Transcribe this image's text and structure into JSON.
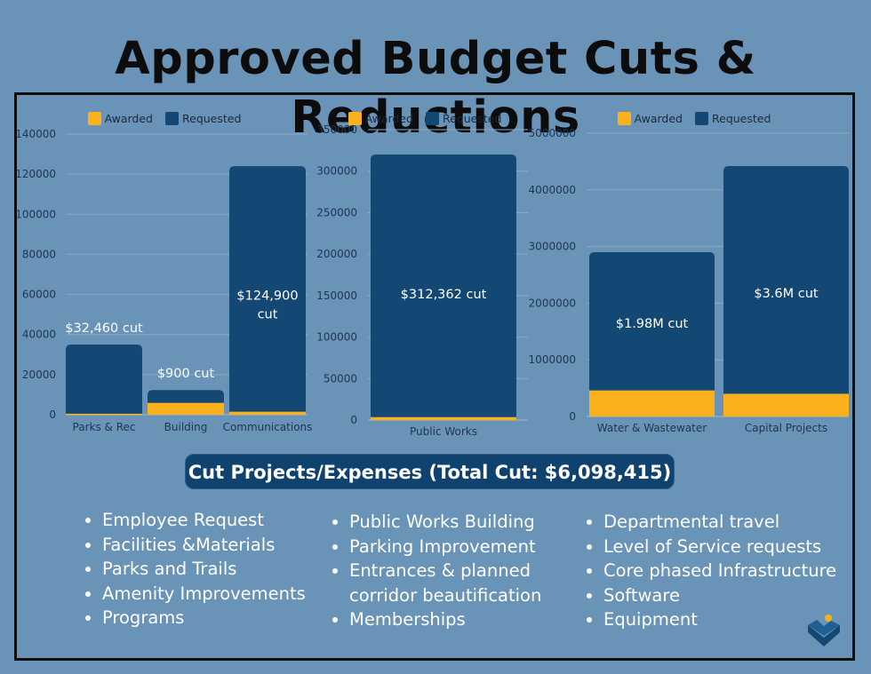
{
  "title": "Approved Budget Cuts & Reductions",
  "colors": {
    "awarded": "#fbb11b",
    "requested": "#134874",
    "axis_text": "#1f3550"
  },
  "chart_data": [
    {
      "type": "bar",
      "stacked": "overlay",
      "categories": [
        "Parks & Rec",
        "Building",
        "Communications"
      ],
      "series": [
        {
          "name": "Awarded",
          "values": [
            500,
            5900,
            1500
          ]
        },
        {
          "name": "Requested",
          "values": [
            35000,
            12300,
            124000
          ]
        }
      ],
      "annotations": [
        "$32,460 cut",
        "$900 cut",
        "$124,900 cut"
      ],
      "annotation_inside": [
        false,
        false,
        true
      ],
      "yticks": [
        0,
        20000,
        40000,
        60000,
        80000,
        100000,
        120000,
        140000
      ],
      "ylim": [
        0,
        140000
      ],
      "legend": "top",
      "grid": true
    },
    {
      "type": "bar",
      "stacked": "overlay",
      "categories": [
        "Public Works"
      ],
      "series": [
        {
          "name": "Awarded",
          "values": [
            3500
          ]
        },
        {
          "name": "Requested",
          "values": [
            320000
          ]
        }
      ],
      "annotations": [
        "$312,362 cut"
      ],
      "annotation_inside": [
        true
      ],
      "yticks": [
        0,
        50000,
        100000,
        150000,
        200000,
        250000,
        300000,
        350000
      ],
      "ylim": [
        0,
        350000
      ],
      "legend": "top",
      "grid": true
    },
    {
      "type": "bar",
      "stacked": "overlay",
      "categories": [
        "Water & Wastewater",
        "Capital Projects"
      ],
      "series": [
        {
          "name": "Awarded",
          "values": [
            460000,
            400000
          ]
        },
        {
          "name": "Requested",
          "values": [
            2900000,
            4420000
          ]
        }
      ],
      "annotations": [
        "$1.98M cut",
        "$3.6M cut"
      ],
      "annotation_inside": [
        true,
        true
      ],
      "yticks": [
        0,
        1000000,
        2000000,
        3000000,
        4000000,
        5000000
      ],
      "ylim": [
        0,
        5000000
      ],
      "legend": "top",
      "grid": true
    }
  ],
  "cut_section": {
    "title": "Cut Projects/Expenses (Total Cut: $6,098,415)",
    "columns": [
      [
        [
          "Employee Request"
        ],
        [
          "Facilities &Materials"
        ],
        [
          "Parks and Trails"
        ],
        [
          "Amenity Improvements"
        ],
        [
          "Programs"
        ]
      ],
      [
        [
          "Public Works Building"
        ],
        [
          "Parking Improvement"
        ],
        [
          "Entrances & planned",
          "corridor beautification"
        ],
        [
          "Memberships"
        ]
      ],
      [
        [
          "Departmental travel"
        ],
        [
          "Level of Service requests"
        ],
        [
          "Core phased Infrastructure"
        ],
        [
          "Software"
        ],
        [
          "Equipment"
        ]
      ]
    ]
  },
  "logo": "mountain-logo-icon"
}
